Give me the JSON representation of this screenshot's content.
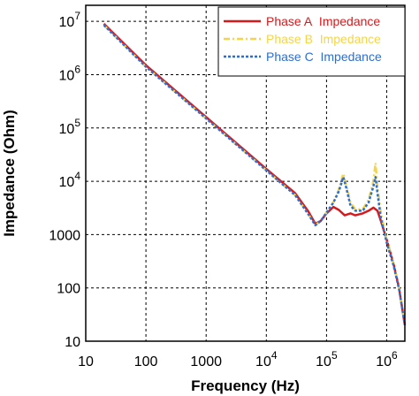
{
  "chart_data": {
    "type": "line",
    "xlabel": "Frequency (Hz)",
    "ylabel": "Impedance (Ohm)",
    "x_scale": "log",
    "y_scale": "log",
    "xlim": [
      10,
      2000000
    ],
    "ylim": [
      10,
      20000000
    ],
    "grid": true,
    "legend_position": "top-right",
    "x_ticks": [
      {
        "value": 10,
        "label": "10"
      },
      {
        "value": 100,
        "label": "100"
      },
      {
        "value": 1000,
        "label": "1000"
      },
      {
        "value": 10000,
        "label": "10",
        "exp": "4"
      },
      {
        "value": 100000,
        "label": "10",
        "exp": "5"
      },
      {
        "value": 1000000,
        "label": "10",
        "exp": "6"
      }
    ],
    "y_ticks": [
      {
        "value": 10,
        "label": "10"
      },
      {
        "value": 100,
        "label": "100"
      },
      {
        "value": 1000,
        "label": "1000"
      },
      {
        "value": 10000,
        "label": "10",
        "exp": "4"
      },
      {
        "value": 100000,
        "label": "10",
        "exp": "5"
      },
      {
        "value": 1000000,
        "label": "10",
        "exp": "6"
      },
      {
        "value": 10000000,
        "label": "10",
        "exp": "7"
      }
    ],
    "series": [
      {
        "name": "Phase A  Impedance",
        "color": "#d7191c",
        "dash": "solid",
        "x": [
          20,
          100,
          1000,
          10000,
          30000,
          50000,
          65000,
          80000,
          100000,
          130000,
          160000,
          200000,
          250000,
          300000,
          400000,
          500000,
          600000,
          700000,
          800000,
          1000000,
          1300000,
          1600000,
          2000000
        ],
        "y": [
          9000000,
          1500000,
          160000,
          17000,
          6000,
          2700,
          1600,
          1800,
          2500,
          3300,
          2900,
          2300,
          2500,
          2300,
          2500,
          2800,
          3200,
          2800,
          1800,
          800,
          280,
          100,
          20
        ]
      },
      {
        "name": "Phase B  Impedance",
        "color": "#f5d547",
        "dash": "dashdot",
        "x": [
          20,
          100,
          1000,
          10000,
          30000,
          50000,
          65000,
          80000,
          100000,
          130000,
          160000,
          190000,
          210000,
          250000,
          300000,
          400000,
          500000,
          600000,
          650000,
          700000,
          800000,
          1000000,
          1300000,
          1600000,
          2000000
        ],
        "y": [
          8500000,
          1400000,
          150000,
          16000,
          5500,
          2400,
          1500,
          1800,
          2600,
          4000,
          7000,
          14000,
          9000,
          4000,
          3000,
          3000,
          4500,
          10000,
          22000,
          8000,
          2500,
          800,
          280,
          100,
          20
        ]
      },
      {
        "name": "Phase C  Impedance",
        "color": "#2c6fd1",
        "dash": "dotted",
        "x": [
          20,
          100,
          1000,
          10000,
          30000,
          50000,
          65000,
          80000,
          100000,
          130000,
          160000,
          190000,
          210000,
          250000,
          300000,
          400000,
          500000,
          600000,
          650000,
          700000,
          800000,
          1000000,
          1300000,
          1600000,
          2000000
        ],
        "y": [
          8500000,
          1400000,
          150000,
          16000,
          5500,
          2400,
          1500,
          1800,
          2600,
          4000,
          6500,
          12000,
          8000,
          3500,
          2800,
          2800,
          4000,
          8000,
          12000,
          6000,
          2000,
          700,
          260,
          95,
          20
        ]
      }
    ]
  }
}
